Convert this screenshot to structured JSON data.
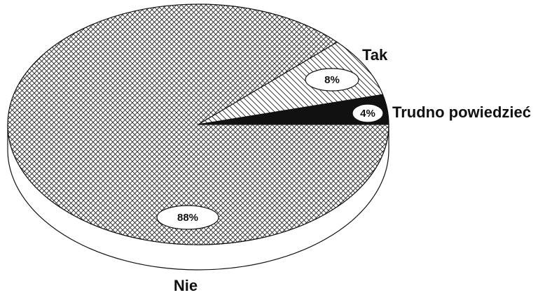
{
  "chart_data": {
    "type": "pie",
    "categories": [
      "Trudno powiedzieć",
      "Tak",
      "Nie"
    ],
    "values": [
      4,
      8,
      88
    ],
    "value_labels": [
      "4%",
      "8%",
      "88%"
    ],
    "colors": [
      "#111111",
      "#222222",
      "#222222"
    ]
  }
}
